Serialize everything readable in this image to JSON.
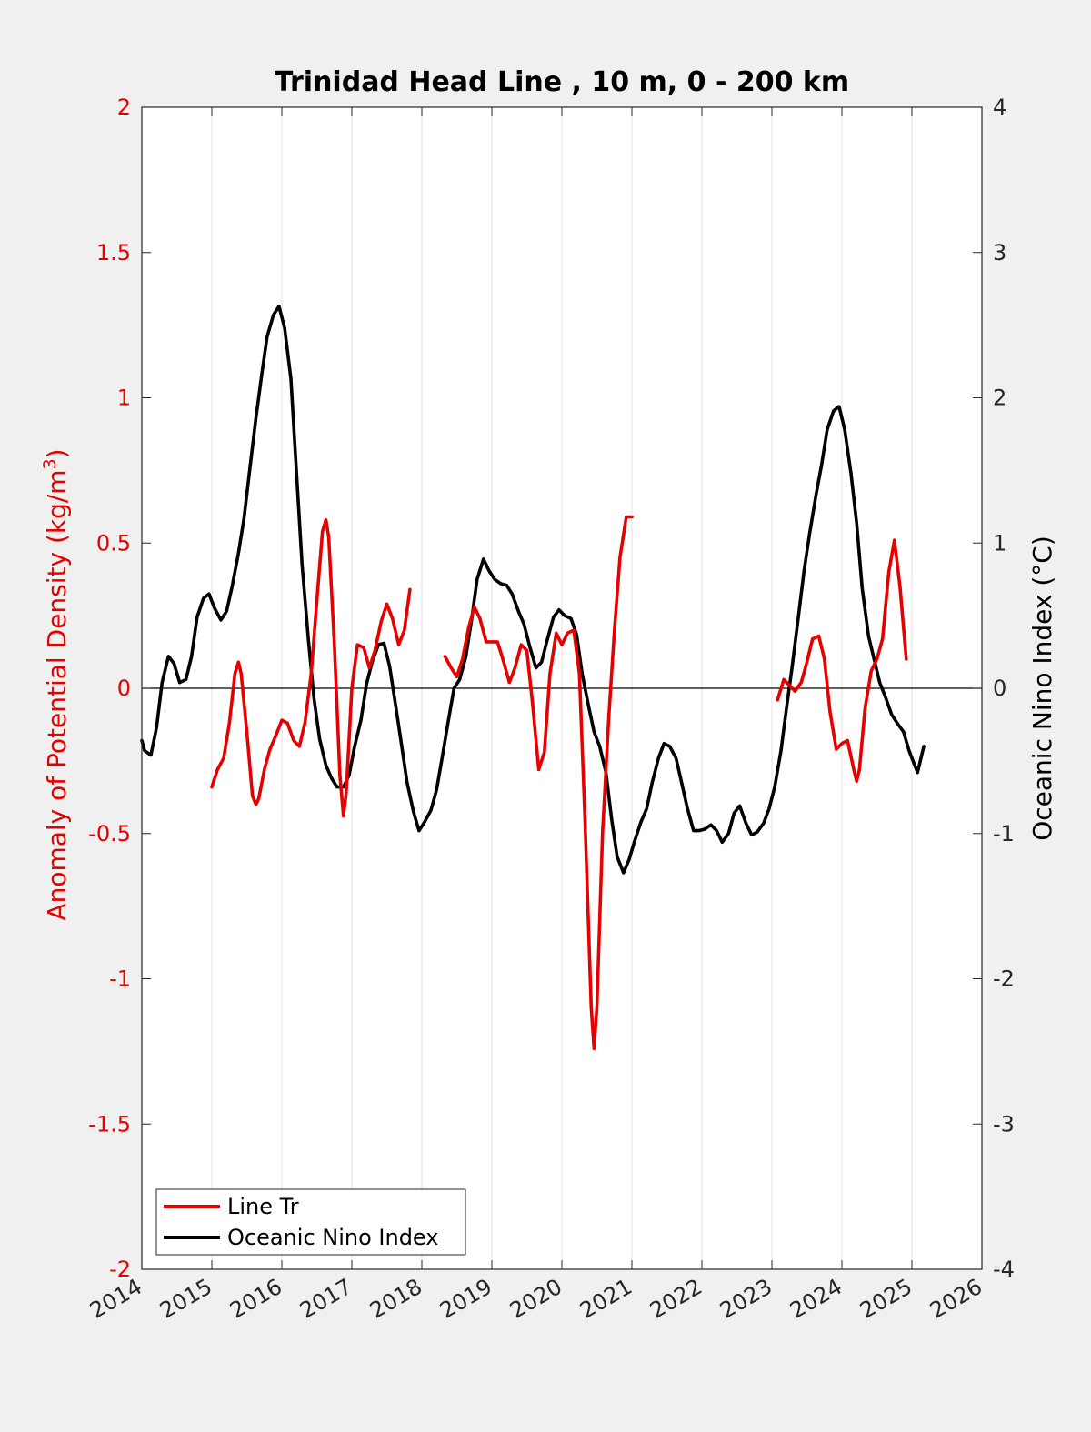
{
  "chart_data": {
    "type": "line",
    "title": "Trinidad Head Line , 10 m, 0 - 200 km",
    "xlabel": "",
    "x_ticks": [
      "2014",
      "2015",
      "2016",
      "2017",
      "2018",
      "2019",
      "2020",
      "2021",
      "2022",
      "2023",
      "2024",
      "2025",
      "2026"
    ],
    "xlim": [
      2014,
      2026
    ],
    "y_left": {
      "label_main": "Anomaly of Potential Density (kg/m",
      "label_sup": "3",
      "label_end": ")",
      "ylim": [
        -2,
        2
      ],
      "ticks": [
        "2",
        "1.5",
        "1",
        "0.5",
        "0",
        "-0.5",
        "-1",
        "-1.5",
        "-2"
      ],
      "color": "#e60000"
    },
    "y_right": {
      "label": "Oceanic Nino Index (°C)",
      "ylim": [
        -4,
        4
      ],
      "ticks": [
        "4",
        "3",
        "2",
        "1",
        "0",
        "-1",
        "-2",
        "-3",
        "-4"
      ],
      "color": "#000000"
    },
    "zero_line": true,
    "grid": "vertical",
    "legend_position": "bottom-left",
    "series": [
      {
        "name": "Line Tr",
        "axis": "left",
        "color": "#e60000",
        "segments": [
          [
            [
              2015.0,
              -0.34
            ],
            [
              2015.08,
              -0.28
            ],
            [
              2015.17,
              -0.24
            ],
            [
              2015.25,
              -0.12
            ],
            [
              2015.33,
              0.05
            ],
            [
              2015.38,
              0.09
            ],
            [
              2015.42,
              0.05
            ],
            [
              2015.5,
              -0.15
            ],
            [
              2015.58,
              -0.37
            ],
            [
              2015.63,
              -0.4
            ],
            [
              2015.67,
              -0.38
            ],
            [
              2015.75,
              -0.28
            ],
            [
              2015.83,
              -0.21
            ],
            [
              2015.92,
              -0.16
            ],
            [
              2016.0,
              -0.11
            ],
            [
              2016.08,
              -0.12
            ],
            [
              2016.17,
              -0.18
            ],
            [
              2016.25,
              -0.2
            ],
            [
              2016.33,
              -0.12
            ],
            [
              2016.42,
              0.05
            ],
            [
              2016.5,
              0.3
            ],
            [
              2016.58,
              0.54
            ],
            [
              2016.63,
              0.58
            ],
            [
              2016.67,
              0.52
            ],
            [
              2016.75,
              0.15
            ],
            [
              2016.83,
              -0.3
            ],
            [
              2016.88,
              -0.44
            ],
            [
              2016.92,
              -0.36
            ],
            [
              2017.0,
              0.0
            ],
            [
              2017.08,
              0.15
            ],
            [
              2017.17,
              0.14
            ],
            [
              2017.25,
              0.07
            ],
            [
              2017.33,
              0.13
            ],
            [
              2017.42,
              0.23
            ],
            [
              2017.5,
              0.29
            ],
            [
              2017.58,
              0.24
            ],
            [
              2017.67,
              0.15
            ],
            [
              2017.75,
              0.2
            ],
            [
              2017.83,
              0.34
            ]
          ],
          [
            [
              2018.33,
              0.11
            ],
            [
              2018.42,
              0.07
            ],
            [
              2018.5,
              0.04
            ],
            [
              2018.58,
              0.1
            ],
            [
              2018.67,
              0.21
            ],
            [
              2018.75,
              0.28
            ],
            [
              2018.83,
              0.24
            ],
            [
              2018.92,
              0.16
            ],
            [
              2019.0,
              0.16
            ],
            [
              2019.08,
              0.16
            ],
            [
              2019.17,
              0.09
            ],
            [
              2019.25,
              0.02
            ],
            [
              2019.33,
              0.07
            ],
            [
              2019.42,
              0.15
            ],
            [
              2019.5,
              0.13
            ],
            [
              2019.58,
              -0.05
            ],
            [
              2019.67,
              -0.28
            ],
            [
              2019.75,
              -0.22
            ],
            [
              2019.83,
              0.05
            ],
            [
              2019.92,
              0.19
            ],
            [
              2020.0,
              0.15
            ],
            [
              2020.08,
              0.19
            ],
            [
              2020.17,
              0.2
            ],
            [
              2020.25,
              0.05
            ],
            [
              2020.33,
              -0.45
            ],
            [
              2020.42,
              -1.1
            ],
            [
              2020.46,
              -1.24
            ],
            [
              2020.5,
              -1.1
            ],
            [
              2020.58,
              -0.5
            ],
            [
              2020.67,
              -0.1
            ],
            [
              2020.75,
              0.2
            ],
            [
              2020.83,
              0.45
            ],
            [
              2020.92,
              0.59
            ],
            [
              2021.0,
              0.59
            ]
          ],
          [
            [
              2023.08,
              -0.04
            ],
            [
              2023.17,
              0.03
            ],
            [
              2023.25,
              0.01
            ],
            [
              2023.33,
              -0.01
            ],
            [
              2023.42,
              0.02
            ],
            [
              2023.5,
              0.09
            ],
            [
              2023.58,
              0.17
            ],
            [
              2023.67,
              0.18
            ],
            [
              2023.75,
              0.1
            ],
            [
              2023.83,
              -0.08
            ],
            [
              2023.92,
              -0.21
            ],
            [
              2024.0,
              -0.19
            ],
            [
              2024.08,
              -0.18
            ],
            [
              2024.17,
              -0.28
            ],
            [
              2024.21,
              -0.32
            ],
            [
              2024.25,
              -0.28
            ],
            [
              2024.33,
              -0.07
            ],
            [
              2024.42,
              0.06
            ],
            [
              2024.5,
              0.1
            ],
            [
              2024.58,
              0.17
            ],
            [
              2024.67,
              0.4
            ],
            [
              2024.75,
              0.51
            ],
            [
              2024.83,
              0.35
            ],
            [
              2024.92,
              0.1
            ]
          ]
        ]
      },
      {
        "name": "Oceanic Nino Index",
        "axis": "right",
        "color": "#000000",
        "segments": [
          [
            [
              2014.0,
              -0.36
            ],
            [
              2014.04,
              -0.43
            ],
            [
              2014.13,
              -0.46
            ],
            [
              2014.21,
              -0.27
            ],
            [
              2014.29,
              0.04
            ],
            [
              2014.38,
              0.22
            ],
            [
              2014.46,
              0.17
            ],
            [
              2014.54,
              0.04
            ],
            [
              2014.63,
              0.06
            ],
            [
              2014.71,
              0.22
            ],
            [
              2014.79,
              0.49
            ],
            [
              2014.88,
              0.62
            ],
            [
              2014.96,
              0.65
            ],
            [
              2015.04,
              0.55
            ],
            [
              2015.13,
              0.47
            ],
            [
              2015.21,
              0.53
            ],
            [
              2015.29,
              0.7
            ],
            [
              2015.38,
              0.93
            ],
            [
              2015.46,
              1.17
            ],
            [
              2015.54,
              1.5
            ],
            [
              2015.63,
              1.86
            ],
            [
              2015.71,
              2.15
            ],
            [
              2015.79,
              2.42
            ],
            [
              2015.88,
              2.57
            ],
            [
              2015.96,
              2.63
            ],
            [
              2016.04,
              2.48
            ],
            [
              2016.13,
              2.13
            ],
            [
              2016.21,
              1.48
            ],
            [
              2016.29,
              0.85
            ],
            [
              2016.38,
              0.33
            ],
            [
              2016.46,
              -0.07
            ],
            [
              2016.54,
              -0.35
            ],
            [
              2016.63,
              -0.53
            ],
            [
              2016.71,
              -0.62
            ],
            [
              2016.79,
              -0.68
            ],
            [
              2016.88,
              -0.68
            ],
            [
              2016.96,
              -0.6
            ],
            [
              2017.04,
              -0.4
            ],
            [
              2017.13,
              -0.22
            ],
            [
              2017.21,
              0.03
            ],
            [
              2017.29,
              0.18
            ],
            [
              2017.38,
              0.3
            ],
            [
              2017.46,
              0.31
            ],
            [
              2017.54,
              0.15
            ],
            [
              2017.63,
              -0.13
            ],
            [
              2017.71,
              -0.39
            ],
            [
              2017.79,
              -0.65
            ],
            [
              2017.88,
              -0.85
            ],
            [
              2017.96,
              -0.98
            ],
            [
              2018.04,
              -0.92
            ],
            [
              2018.13,
              -0.84
            ],
            [
              2018.21,
              -0.7
            ],
            [
              2018.29,
              -0.48
            ],
            [
              2018.38,
              -0.22
            ],
            [
              2018.46,
              0.0
            ],
            [
              2018.54,
              0.06
            ],
            [
              2018.63,
              0.22
            ],
            [
              2018.71,
              0.47
            ],
            [
              2018.79,
              0.75
            ],
            [
              2018.88,
              0.89
            ],
            [
              2018.96,
              0.81
            ],
            [
              2019.04,
              0.75
            ],
            [
              2019.13,
              0.72
            ],
            [
              2019.21,
              0.71
            ],
            [
              2019.29,
              0.65
            ],
            [
              2019.38,
              0.53
            ],
            [
              2019.46,
              0.44
            ],
            [
              2019.54,
              0.29
            ],
            [
              2019.63,
              0.14
            ],
            [
              2019.71,
              0.18
            ],
            [
              2019.79,
              0.33
            ],
            [
              2019.88,
              0.49
            ],
            [
              2019.96,
              0.54
            ],
            [
              2020.04,
              0.5
            ],
            [
              2020.13,
              0.48
            ],
            [
              2020.21,
              0.37
            ],
            [
              2020.29,
              0.1
            ],
            [
              2020.38,
              -0.12
            ],
            [
              2020.46,
              -0.3
            ],
            [
              2020.54,
              -0.4
            ],
            [
              2020.63,
              -0.58
            ],
            [
              2020.71,
              -0.9
            ],
            [
              2020.79,
              -1.16
            ],
            [
              2020.88,
              -1.27
            ],
            [
              2020.96,
              -1.18
            ],
            [
              2021.04,
              -1.05
            ],
            [
              2021.13,
              -0.92
            ],
            [
              2021.21,
              -0.83
            ],
            [
              2021.29,
              -0.65
            ],
            [
              2021.38,
              -0.48
            ],
            [
              2021.46,
              -0.38
            ],
            [
              2021.54,
              -0.4
            ],
            [
              2021.63,
              -0.48
            ],
            [
              2021.71,
              -0.65
            ],
            [
              2021.79,
              -0.82
            ],
            [
              2021.88,
              -0.98
            ],
            [
              2021.96,
              -0.98
            ],
            [
              2022.04,
              -0.97
            ],
            [
              2022.13,
              -0.94
            ],
            [
              2022.21,
              -0.98
            ],
            [
              2022.29,
              -1.06
            ],
            [
              2022.38,
              -1.0
            ],
            [
              2022.46,
              -0.86
            ],
            [
              2022.54,
              -0.81
            ],
            [
              2022.63,
              -0.93
            ],
            [
              2022.71,
              -1.01
            ],
            [
              2022.79,
              -0.99
            ],
            [
              2022.88,
              -0.93
            ],
            [
              2022.96,
              -0.83
            ],
            [
              2023.04,
              -0.68
            ],
            [
              2023.13,
              -0.43
            ],
            [
              2023.21,
              -0.13
            ],
            [
              2023.29,
              0.15
            ],
            [
              2023.38,
              0.5
            ],
            [
              2023.46,
              0.81
            ],
            [
              2023.54,
              1.07
            ],
            [
              2023.63,
              1.33
            ],
            [
              2023.71,
              1.54
            ],
            [
              2023.79,
              1.78
            ],
            [
              2023.88,
              1.91
            ],
            [
              2023.96,
              1.94
            ],
            [
              2024.04,
              1.78
            ],
            [
              2024.13,
              1.48
            ],
            [
              2024.21,
              1.14
            ],
            [
              2024.29,
              0.69
            ],
            [
              2024.38,
              0.36
            ],
            [
              2024.46,
              0.2
            ],
            [
              2024.54,
              0.04
            ],
            [
              2024.63,
              -0.07
            ],
            [
              2024.71,
              -0.18
            ],
            [
              2024.79,
              -0.24
            ],
            [
              2024.88,
              -0.3
            ],
            [
              2024.96,
              -0.43
            ],
            [
              2025.04,
              -0.53
            ],
            [
              2025.08,
              -0.58
            ],
            [
              2025.17,
              -0.4
            ]
          ]
        ]
      }
    ]
  }
}
